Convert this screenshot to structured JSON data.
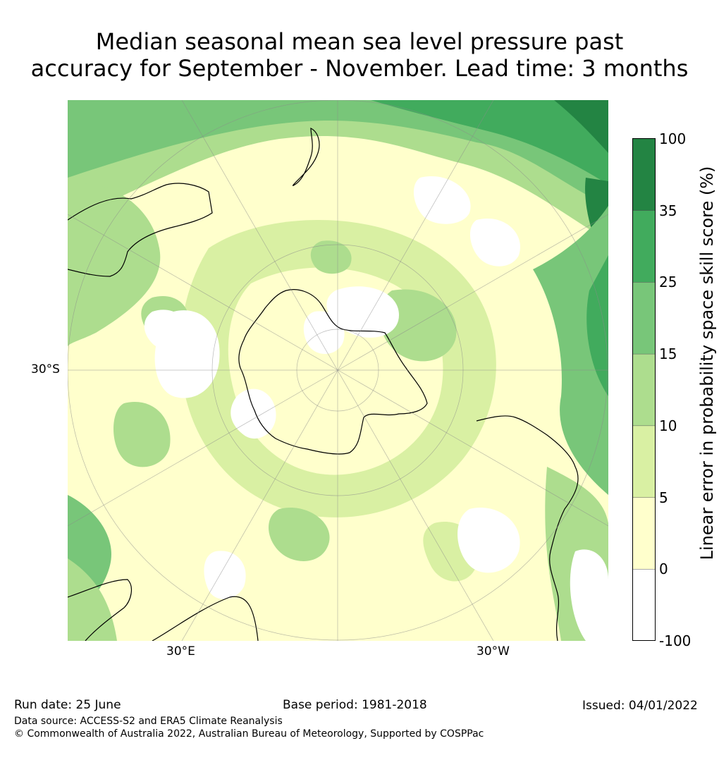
{
  "title_line1": "Median seasonal mean sea level pressure past",
  "title_line2": "accuracy for September - November. Lead time: 3 months",
  "map": {
    "projection": "south-polar-stereographic",
    "lat_label": "30°S",
    "lon_labels": [
      "30°E",
      "30°W"
    ]
  },
  "colorbar": {
    "title": "Linear error in probability space skill score (%)",
    "ticks": [
      "100",
      "35",
      "25",
      "15",
      "10",
      "5",
      "0",
      "-100"
    ],
    "bins": [
      {
        "range": "35 to 100",
        "color": "#238443"
      },
      {
        "range": "25 to 35",
        "color": "#41ab5d"
      },
      {
        "range": "15 to 25",
        "color": "#78c679"
      },
      {
        "range": "10 to 15",
        "color": "#addd8e"
      },
      {
        "range": "5 to 10",
        "color": "#d9f0a3"
      },
      {
        "range": "0 to 5",
        "color": "#ffffcc"
      },
      {
        "range": "-100 to 0",
        "color": "#ffffff"
      }
    ]
  },
  "footer": {
    "run_date": "Run date: 25 June",
    "base_period": "Base period: 1981-2018",
    "issued": "Issued: 04/01/2022",
    "data_source": "Data source: ACCESS-S2 and ERA5 Climate Reanalysis",
    "copyright": "© Commonwealth of Australia 2022, Australian Bureau of Meteorology, Supported by COSPPac"
  }
}
